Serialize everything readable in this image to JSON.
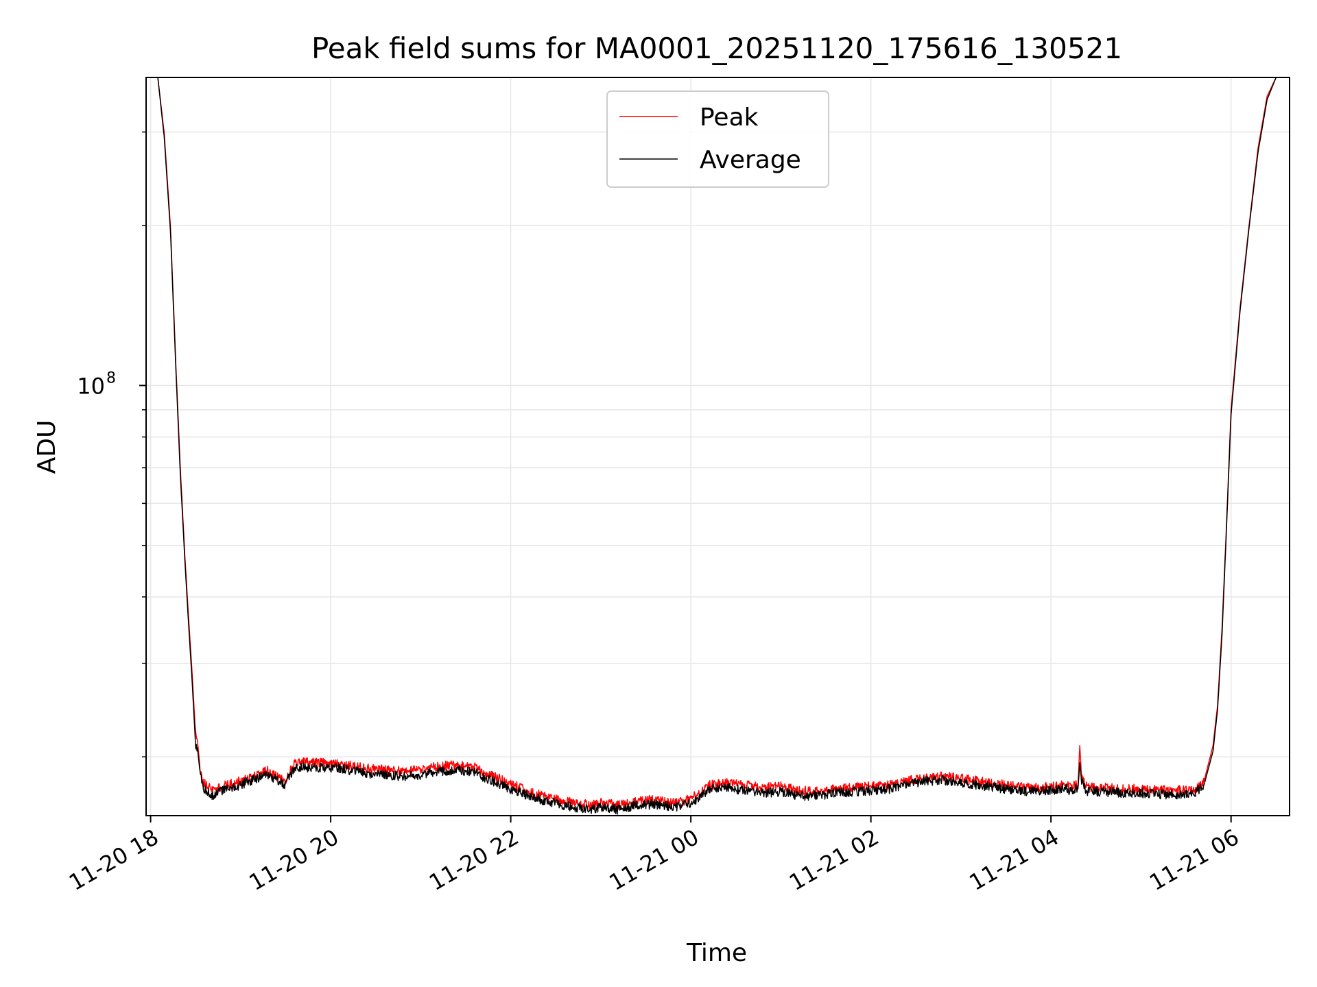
{
  "chart_data": {
    "type": "line",
    "title": "Peak field sums for MA0001_20251120_175616_130521",
    "xlabel": "Time",
    "ylabel": "ADU",
    "y_scale": "log",
    "ylim": [
      15500000,
      380000000
    ],
    "xlim_hours": [
      17.95,
      30.65
    ],
    "x_ticks": [
      {
        "hours": 18,
        "label": "11-20 18"
      },
      {
        "hours": 20,
        "label": "11-20 20"
      },
      {
        "hours": 22,
        "label": "11-20 22"
      },
      {
        "hours": 24,
        "label": "11-21 00"
      },
      {
        "hours": 26,
        "label": "11-21 02"
      },
      {
        "hours": 28,
        "label": "11-21 04"
      },
      {
        "hours": 30,
        "label": "11-21 06"
      }
    ],
    "y_ticks": [
      {
        "value": 100000000,
        "base": "10",
        "exp": "8"
      }
    ],
    "grid": true,
    "legend_position": "top-center",
    "series": [
      {
        "name": "Peak",
        "color": "#ff0000",
        "x_hours": [
          17.95,
          18.08,
          18.15,
          18.22,
          18.28,
          18.33,
          18.38,
          18.42,
          18.46,
          18.5,
          18.52,
          18.55,
          18.58,
          18.62,
          18.7,
          18.75,
          18.8,
          18.9,
          19.0,
          19.1,
          19.2,
          19.3,
          19.4,
          19.5,
          19.55,
          19.6,
          19.7,
          19.75,
          19.85,
          20.0,
          20.2,
          20.4,
          20.6,
          20.8,
          21.0,
          21.2,
          21.4,
          21.6,
          21.7,
          21.8,
          22.0,
          22.2,
          22.4,
          22.6,
          22.8,
          22.9,
          23.0,
          23.2,
          23.4,
          23.6,
          23.8,
          23.9,
          24.0,
          24.1,
          24.2,
          24.4,
          24.6,
          24.8,
          25.0,
          25.2,
          25.4,
          25.6,
          25.8,
          26.0,
          26.2,
          26.4,
          26.6,
          26.8,
          27.0,
          27.2,
          27.4,
          27.6,
          27.8,
          28.0,
          28.1,
          28.15,
          28.2,
          28.3,
          28.32,
          28.34,
          28.4,
          28.6,
          28.8,
          29.0,
          29.2,
          29.4,
          29.6,
          29.7,
          29.8,
          29.85,
          29.9,
          29.95,
          30.0,
          30.1,
          30.2,
          30.3,
          30.4,
          30.5,
          30.65
        ],
        "values": [
          380000000,
          380000000,
          300000000,
          200000000,
          110000000,
          70000000,
          48000000,
          37000000,
          29000000,
          22000000,
          21500000,
          19000000,
          18000000,
          17700000,
          17200000,
          17400000,
          17600000,
          17800000,
          18000000,
          18300000,
          18600000,
          18800000,
          18400000,
          18000000,
          18800000,
          19400000,
          19600000,
          19500000,
          19500000,
          19500000,
          19300000,
          19000000,
          18900000,
          18800000,
          18900000,
          19200000,
          19300000,
          19100000,
          18700000,
          18400000,
          17800000,
          17200000,
          16800000,
          16500000,
          16300000,
          16200000,
          16400000,
          16200000,
          16500000,
          16600000,
          16400000,
          16500000,
          16700000,
          17100000,
          17700000,
          17900000,
          17700000,
          17500000,
          17600000,
          17300000,
          17200000,
          17400000,
          17500000,
          17600000,
          17700000,
          18000000,
          18300000,
          18400000,
          18200000,
          18000000,
          17800000,
          17600000,
          17500000,
          17600000,
          17700000,
          17800000,
          17600000,
          17700000,
          21000000,
          18300000,
          17500000,
          17500000,
          17400000,
          17400000,
          17300000,
          17300000,
          17400000,
          18000000,
          21000000,
          25000000,
          35000000,
          55000000,
          90000000,
          140000000,
          200000000,
          280000000,
          350000000,
          380000000,
          380000000
        ]
      },
      {
        "name": "Average",
        "color": "#000000",
        "x_hours": [
          17.95,
          18.08,
          18.15,
          18.22,
          18.28,
          18.33,
          18.38,
          18.42,
          18.46,
          18.5,
          18.52,
          18.55,
          18.58,
          18.62,
          18.7,
          18.75,
          18.8,
          18.9,
          19.0,
          19.1,
          19.2,
          19.3,
          19.4,
          19.5,
          19.55,
          19.6,
          19.7,
          19.75,
          19.85,
          20.0,
          20.2,
          20.4,
          20.6,
          20.8,
          21.0,
          21.2,
          21.4,
          21.6,
          21.7,
          21.8,
          22.0,
          22.2,
          22.4,
          22.6,
          22.8,
          22.9,
          23.0,
          23.2,
          23.4,
          23.6,
          23.8,
          23.9,
          24.0,
          24.1,
          24.2,
          24.4,
          24.6,
          24.8,
          25.0,
          25.2,
          25.4,
          25.6,
          25.8,
          26.0,
          26.2,
          26.4,
          26.6,
          26.8,
          27.0,
          27.2,
          27.4,
          27.6,
          27.8,
          28.0,
          28.1,
          28.15,
          28.2,
          28.3,
          28.32,
          28.34,
          28.4,
          28.6,
          28.8,
          29.0,
          29.2,
          29.4,
          29.6,
          29.7,
          29.8,
          29.85,
          29.9,
          29.95,
          30.0,
          30.1,
          30.2,
          30.3,
          30.4,
          30.5,
          30.65
        ],
        "values": [
          380000000,
          380000000,
          295000000,
          196000000,
          108000000,
          68000000,
          47000000,
          36000000,
          28000000,
          21000000,
          20800000,
          18600000,
          17500000,
          17200000,
          16900000,
          17100000,
          17300000,
          17500000,
          17700000,
          18000000,
          18300000,
          18500000,
          18100000,
          17700000,
          18500000,
          19000000,
          19200000,
          19100000,
          19100000,
          19100000,
          18900000,
          18600000,
          18500000,
          18400000,
          18500000,
          18800000,
          18900000,
          18700000,
          18300000,
          18000000,
          17400000,
          16900000,
          16500000,
          16200000,
          16000000,
          15900000,
          16100000,
          15900000,
          16200000,
          16300000,
          16100000,
          16200000,
          16400000,
          16800000,
          17400000,
          17500000,
          17300000,
          17100000,
          17200000,
          16900000,
          16900000,
          17100000,
          17200000,
          17300000,
          17400000,
          17700000,
          18000000,
          18100000,
          17900000,
          17700000,
          17500000,
          17300000,
          17200000,
          17300000,
          17400000,
          17500000,
          17300000,
          17400000,
          19500000,
          18000000,
          17200000,
          17200000,
          17100000,
          17100000,
          17000000,
          17000000,
          17100000,
          17700000,
          20500000,
          24500000,
          34000000,
          54000000,
          88000000,
          138000000,
          198000000,
          275000000,
          345000000,
          380000000,
          380000000
        ]
      }
    ]
  }
}
